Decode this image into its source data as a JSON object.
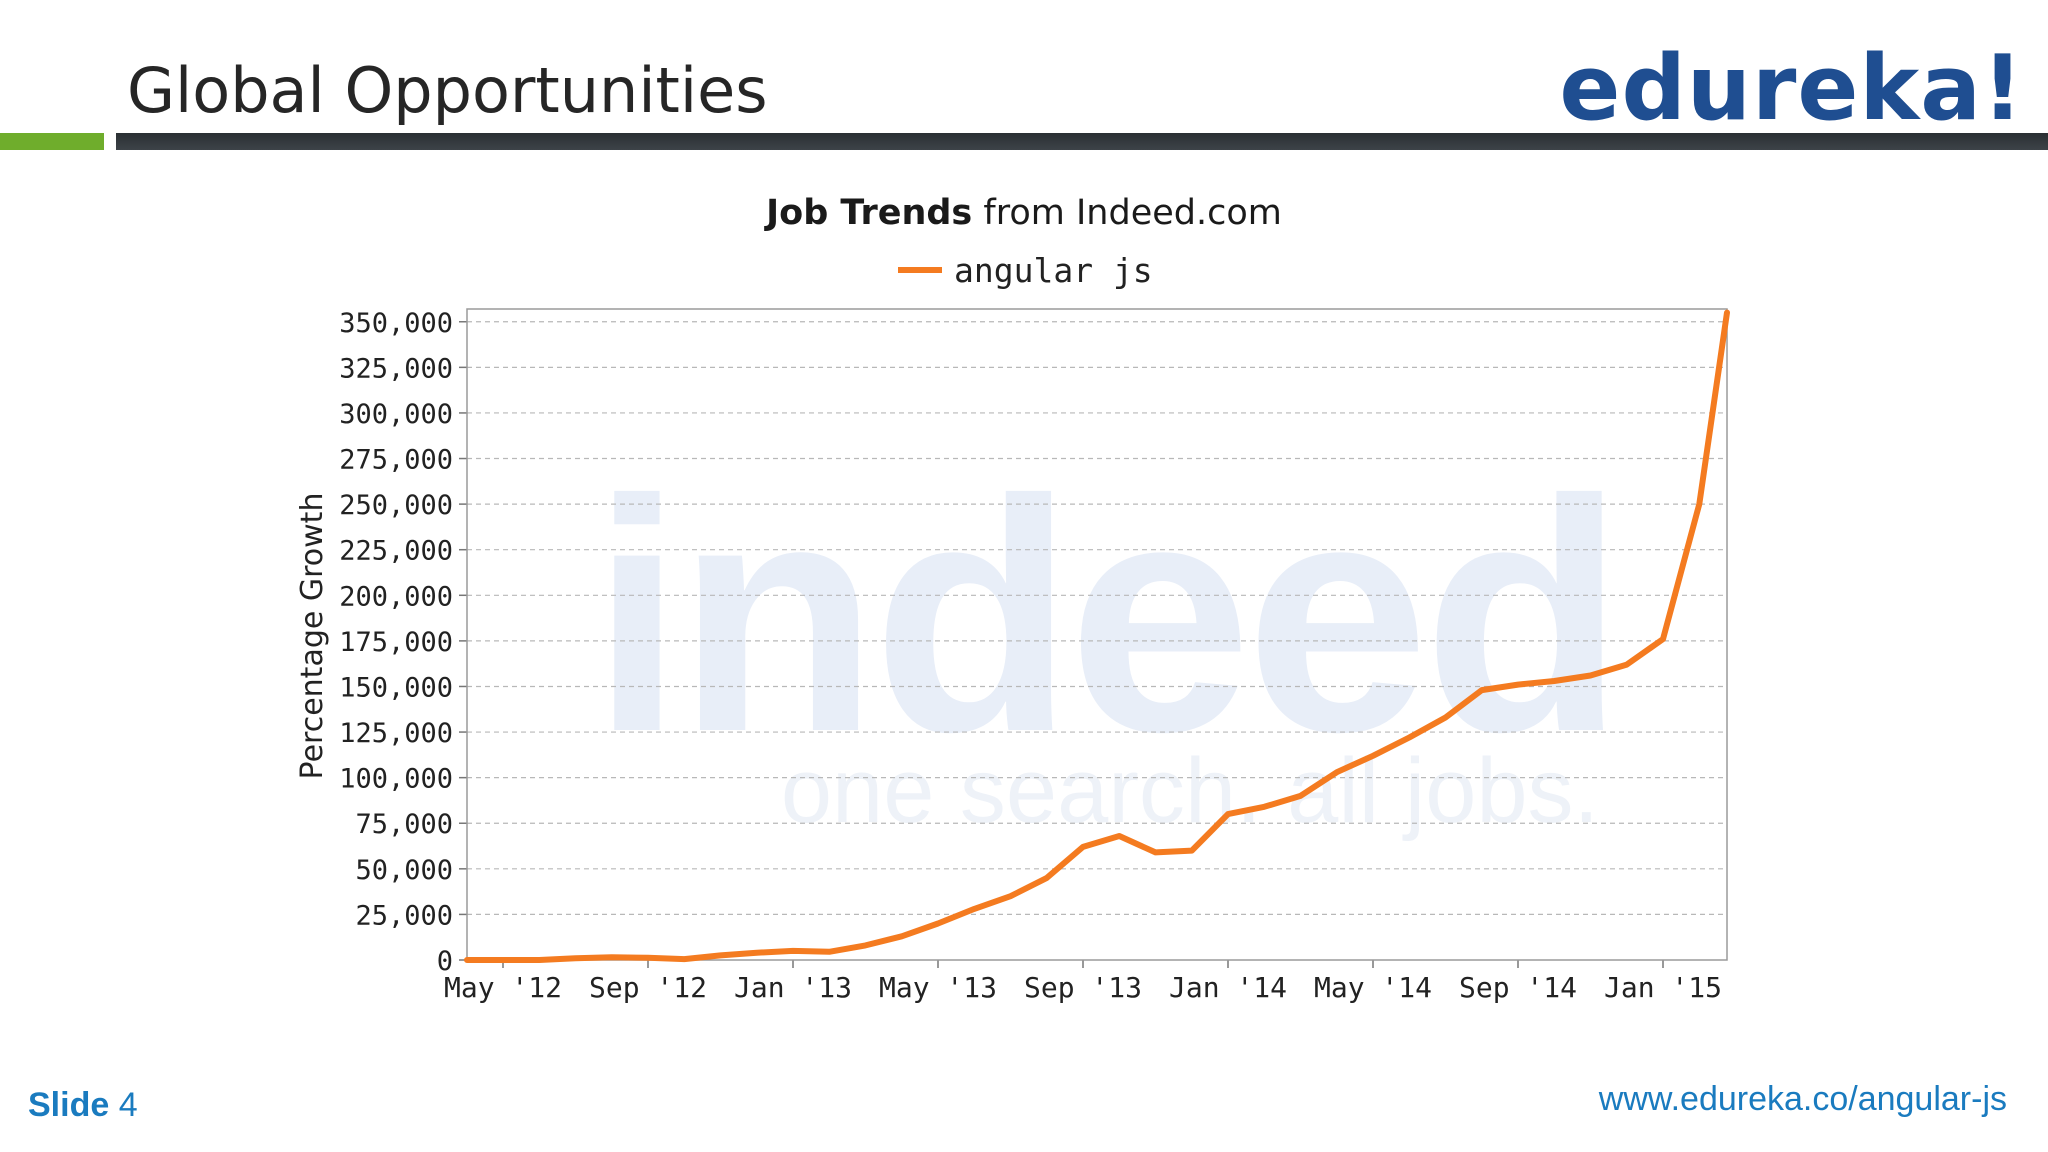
{
  "slide": {
    "title": "Global Opportunities",
    "logo_text": "edureka!",
    "footer_label": "Slide",
    "footer_number": "4",
    "footer_url": "www.edureka.co/angular-js",
    "colors": {
      "accent_green": "#6fad2c",
      "logo_blue": "#1f4e91",
      "footer_blue": "#1a7bbf",
      "series_orange": "#f47b20"
    }
  },
  "chart_data": {
    "type": "line",
    "title_bold": "Job Trends",
    "title_rest": "from Indeed.com",
    "ylabel": "Percentage Growth",
    "xlabel": "",
    "ylim": [
      0,
      350000
    ],
    "yticks": [
      0,
      25000,
      50000,
      75000,
      100000,
      125000,
      150000,
      175000,
      200000,
      225000,
      250000,
      275000,
      300000,
      325000,
      350000
    ],
    "ytick_labels": [
      "0",
      "25,000",
      "50,000",
      "75,000",
      "100,000",
      "125,000",
      "150,000",
      "175,000",
      "200,000",
      "225,000",
      "250,000",
      "275,000",
      "300,000",
      "325,000",
      "350,000"
    ],
    "xtick_labels": [
      "May '12",
      "Sep '12",
      "Jan '13",
      "May '13",
      "Sep '13",
      "Jan '14",
      "May '14",
      "Sep '14",
      "Jan '15"
    ],
    "grid": true,
    "legend_position": "top-center",
    "watermark_text": "indeed",
    "watermark_tagline": "one search. all jobs.",
    "series": [
      {
        "name": "angular js",
        "color": "#f47b20",
        "x": [
          "2012-04",
          "2012-05",
          "2012-06",
          "2012-07",
          "2012-08",
          "2012-09",
          "2012-10",
          "2012-11",
          "2012-12",
          "2013-01",
          "2013-02",
          "2013-03",
          "2013-04",
          "2013-05",
          "2013-06",
          "2013-07",
          "2013-08",
          "2013-09",
          "2013-10",
          "2013-11",
          "2013-12",
          "2014-01",
          "2014-02",
          "2014-03",
          "2014-04",
          "2014-05",
          "2014-06",
          "2014-07",
          "2014-08",
          "2014-09",
          "2014-10",
          "2014-11",
          "2014-12",
          "2015-01",
          "2015-02",
          "2015-03"
        ],
        "values": [
          0,
          0,
          0,
          1000,
          1500,
          1200,
          500,
          2500,
          4000,
          5000,
          4500,
          8000,
          13000,
          20000,
          28000,
          35000,
          45000,
          62000,
          68000,
          59000,
          60000,
          80000,
          84000,
          90000,
          103000,
          112000,
          122000,
          133000,
          148000,
          151000,
          153000,
          156000,
          162000,
          176000,
          250000,
          355000
        ]
      }
    ]
  }
}
